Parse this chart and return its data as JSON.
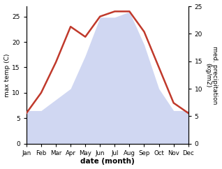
{
  "months": [
    "Jan",
    "Feb",
    "Mar",
    "Apr",
    "May",
    "Jun",
    "Jul",
    "Aug",
    "Sep",
    "Oct",
    "Nov",
    "Dec"
  ],
  "temperature": [
    6,
    10,
    16,
    23,
    21,
    25,
    26,
    26,
    22,
    15,
    8,
    6
  ],
  "precipitation": [
    6,
    6,
    8,
    10,
    16,
    23,
    23,
    24,
    18,
    10,
    6,
    6
  ],
  "temp_color": "#c0392b",
  "precip_color_fill": "#c8d0f0",
  "ylabel_left": "max temp (C)",
  "ylabel_right": "med. precipitation\n(kg/m2)",
  "xlabel": "date (month)",
  "ylim_left": [
    0,
    27
  ],
  "ylim_right": [
    0,
    25
  ],
  "yticks_left": [
    0,
    5,
    10,
    15,
    20,
    25
  ],
  "yticks_right": [
    0,
    5,
    10,
    15,
    20,
    25
  ],
  "background_color": "#ffffff"
}
